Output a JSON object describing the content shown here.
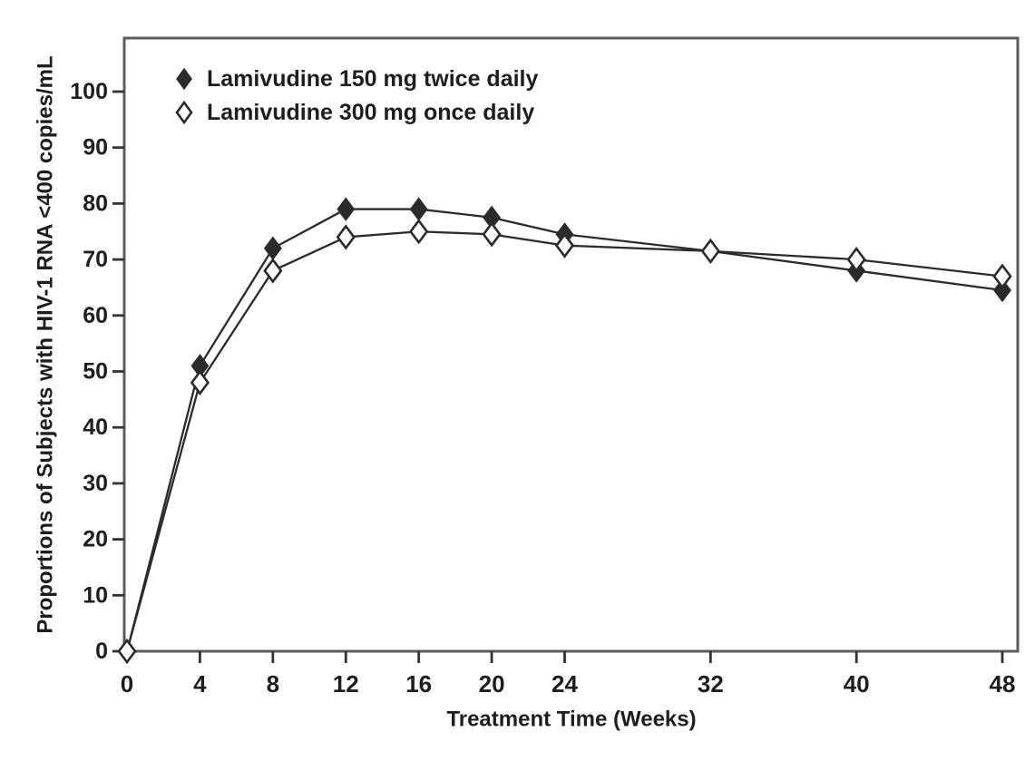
{
  "chart_data": {
    "type": "line",
    "title": "",
    "xlabel": "Treatment Time (Weeks)",
    "ylabel": "Proportions of Subjects with HIV-1 RNA <400 copies/mL",
    "x": [
      0,
      4,
      8,
      12,
      16,
      20,
      24,
      32,
      40,
      48
    ],
    "xticks": [
      0,
      4,
      8,
      12,
      16,
      20,
      24,
      32,
      40,
      48
    ],
    "yticks": [
      0,
      10,
      20,
      30,
      40,
      50,
      60,
      70,
      80,
      90,
      100
    ],
    "xlim": [
      0,
      48
    ],
    "ylim": [
      0,
      100
    ],
    "grid": false,
    "legend_position": "top-left-inside",
    "series": [
      {
        "name": "Lamivudine 150 mg twice daily",
        "marker": "filled-diamond",
        "values": [
          0,
          51,
          72,
          79,
          79,
          77.5,
          74.5,
          71.5,
          68,
          64.5
        ]
      },
      {
        "name": "Lamivudine 300 mg once daily",
        "marker": "open-diamond",
        "values": [
          0,
          48,
          68,
          74,
          75,
          74.5,
          72.5,
          71.5,
          70,
          67
        ]
      }
    ],
    "colors": {
      "line": "#2b2b2b",
      "frame": "#5c5c5c",
      "text": "#1e1e1e",
      "open_marker_fill": "#ffffff"
    }
  }
}
